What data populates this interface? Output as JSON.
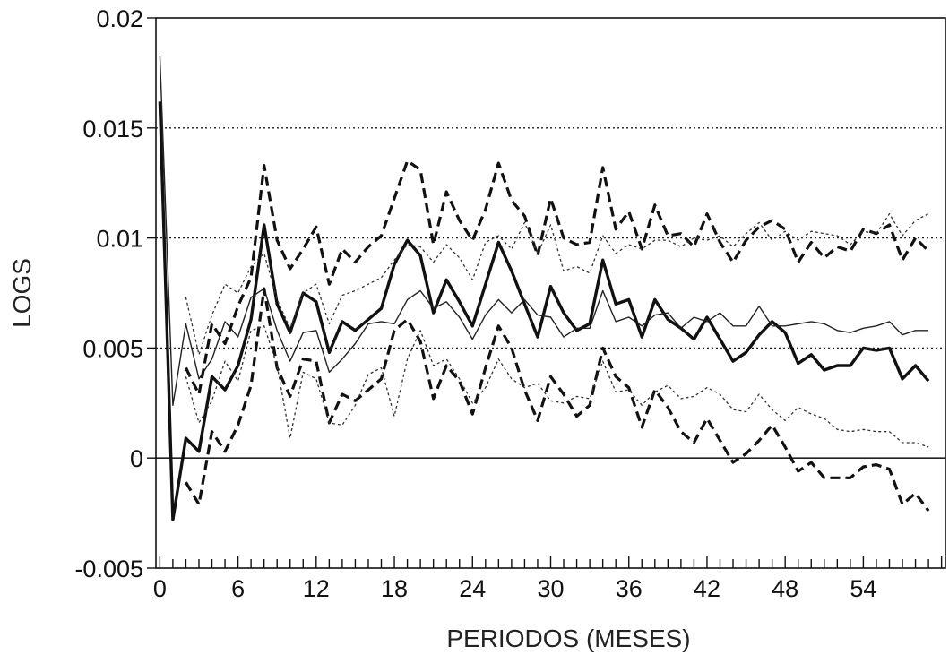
{
  "chart_data": {
    "type": "line",
    "title": "",
    "xlabel": "PERIODOS (MESES)",
    "ylabel": "LOGS",
    "xlim": [
      0,
      60
    ],
    "ylim": [
      -0.005,
      0.02
    ],
    "x_ticks": [
      0,
      6,
      12,
      18,
      24,
      30,
      36,
      42,
      48,
      54
    ],
    "x_tick_labels": [
      "0",
      "6",
      "12",
      "18",
      "24",
      "30",
      "36",
      "42",
      "48",
      "54"
    ],
    "y_ticks": [
      -0.005,
      0,
      0.005,
      0.01,
      0.015,
      0.02
    ],
    "y_tick_labels": [
      "-0.005",
      "0",
      "0.005",
      "0.01",
      "0.015",
      "0.02"
    ],
    "grid": "horizontal dotted",
    "legend": "none",
    "x": [
      0,
      1,
      2,
      3,
      4,
      5,
      6,
      7,
      8,
      9,
      10,
      11,
      12,
      13,
      14,
      15,
      16,
      17,
      18,
      19,
      20,
      21,
      22,
      23,
      24,
      25,
      26,
      27,
      28,
      29,
      30,
      31,
      32,
      33,
      34,
      35,
      36,
      37,
      38,
      39,
      40,
      41,
      42,
      43,
      44,
      45,
      46,
      47,
      48,
      49,
      50,
      51,
      52,
      53,
      54,
      55,
      56,
      57,
      58,
      59
    ],
    "series": [
      {
        "style": "solid-thick",
        "color": "#111111",
        "values": [
          0.0162,
          -0.0028,
          0.0009,
          0.0003,
          0.0037,
          0.0031,
          0.0042,
          0.0063,
          0.0106,
          0.007,
          0.0057,
          0.0075,
          0.0071,
          0.0048,
          0.0062,
          0.0058,
          0.0063,
          0.0068,
          0.0088,
          0.0099,
          0.0092,
          0.0066,
          0.0081,
          0.0071,
          0.006,
          0.0079,
          0.0098,
          0.0085,
          0.007,
          0.0055,
          0.0078,
          0.0066,
          0.0058,
          0.0061,
          0.009,
          0.007,
          0.0072,
          0.0055,
          0.0072,
          0.0063,
          0.0059,
          0.0054,
          0.0064,
          0.0054,
          0.0044,
          0.0048,
          0.0056,
          0.0062,
          0.0057,
          0.0043,
          0.0047,
          0.004,
          0.0042,
          0.0042,
          0.005,
          0.0049,
          0.005,
          0.0036,
          0.0042,
          0.0035
        ]
      },
      {
        "style": "solid-thin",
        "color": "#222222",
        "values": [
          0.0183,
          0.0024,
          0.0061,
          0.0036,
          0.0045,
          0.0062,
          0.0055,
          0.0073,
          0.0077,
          0.0058,
          0.0044,
          0.0057,
          0.0058,
          0.0039,
          0.0045,
          0.0052,
          0.0061,
          0.0062,
          0.0061,
          0.0072,
          0.0076,
          0.0068,
          0.0071,
          0.0064,
          0.0054,
          0.0065,
          0.0072,
          0.0066,
          0.0072,
          0.0065,
          0.0064,
          0.0055,
          0.0059,
          0.0059,
          0.0076,
          0.0062,
          0.0064,
          0.006,
          0.0065,
          0.0066,
          0.0059,
          0.0064,
          0.0062,
          0.0066,
          0.006,
          0.006,
          0.0069,
          0.006,
          0.006,
          0.0061,
          0.0062,
          0.0061,
          0.0058,
          0.0057,
          0.0059,
          0.006,
          0.0062,
          0.0056,
          0.0058,
          0.0058
        ]
      },
      {
        "style": "dashed-thick",
        "color": "#111111",
        "values": [
          null,
          null,
          0.0041,
          0.0029,
          0.0061,
          0.0052,
          0.0069,
          0.0082,
          0.0133,
          0.0099,
          0.0086,
          0.0095,
          0.0105,
          0.0079,
          0.0095,
          0.0089,
          0.0096,
          0.0101,
          0.0118,
          0.0135,
          0.0131,
          0.0097,
          0.0121,
          0.0108,
          0.0099,
          0.0113,
          0.0134,
          0.0117,
          0.011,
          0.0092,
          0.0118,
          0.01,
          0.0097,
          0.0098,
          0.0132,
          0.0104,
          0.0112,
          0.0095,
          0.0115,
          0.0101,
          0.0102,
          0.0096,
          0.0111,
          0.0098,
          0.0089,
          0.0099,
          0.0105,
          0.0108,
          0.0104,
          0.0089,
          0.0098,
          0.0091,
          0.0096,
          0.0094,
          0.0104,
          0.0102,
          0.0106,
          0.009,
          0.01,
          0.0094
        ]
      },
      {
        "style": "dashed-thick",
        "color": "#111111",
        "values": [
          null,
          null,
          -0.0011,
          -0.0021,
          0.0012,
          0.0003,
          0.0015,
          0.0033,
          0.0077,
          0.0041,
          0.0028,
          0.0045,
          0.0044,
          0.0016,
          0.0029,
          0.0026,
          0.0031,
          0.0036,
          0.0058,
          0.0063,
          0.0053,
          0.0027,
          0.0042,
          0.0035,
          0.002,
          0.0041,
          0.006,
          0.005,
          0.0031,
          0.0017,
          0.0037,
          0.0029,
          0.0019,
          0.0024,
          0.005,
          0.0037,
          0.0032,
          0.0014,
          0.0031,
          0.0023,
          0.0012,
          0.0007,
          0.0018,
          0.0008,
          -0.0002,
          0.0002,
          0.0008,
          0.0015,
          0.0005,
          -0.0006,
          -0.0002,
          -0.0009,
          -0.0009,
          -0.0009,
          -0.0004,
          -0.0003,
          -0.0005,
          -0.0021,
          -0.0016,
          -0.0024
        ]
      },
      {
        "style": "dotted-thin",
        "color": "#333333",
        "values": [
          null,
          null,
          0.0073,
          0.0047,
          0.0065,
          0.0079,
          0.0075,
          0.0087,
          0.0093,
          0.0072,
          0.0059,
          0.0075,
          0.0079,
          0.0061,
          0.0074,
          0.0076,
          0.0079,
          0.0082,
          0.009,
          0.0097,
          0.0096,
          0.0089,
          0.0097,
          0.0091,
          0.0081,
          0.0098,
          0.0101,
          0.0095,
          0.0107,
          0.0093,
          0.0106,
          0.0085,
          0.0087,
          0.0084,
          0.0101,
          0.0093,
          0.0097,
          0.0095,
          0.0099,
          0.0099,
          0.0096,
          0.01,
          0.0099,
          0.0101,
          0.0096,
          0.0102,
          0.0107,
          0.0099,
          0.0103,
          0.0099,
          0.0103,
          0.0102,
          0.0101,
          0.0097,
          0.0103,
          0.0102,
          0.0111,
          0.0101,
          0.0108,
          0.0111
        ]
      },
      {
        "style": "dotted-thin",
        "color": "#333333",
        "values": [
          null,
          null,
          0.0037,
          0.0016,
          0.0026,
          0.0044,
          0.0035,
          0.0058,
          0.006,
          0.0042,
          0.0009,
          0.0039,
          0.0036,
          0.0016,
          0.0015,
          0.0024,
          0.0038,
          0.0041,
          0.0019,
          0.0045,
          0.0058,
          0.0042,
          0.0045,
          0.0036,
          0.0025,
          0.0032,
          0.0045,
          0.0036,
          0.0032,
          0.0034,
          0.0026,
          0.0025,
          0.0028,
          0.0027,
          0.0044,
          0.003,
          0.0031,
          0.0024,
          0.003,
          0.0033,
          0.0027,
          0.0028,
          0.0032,
          0.0029,
          0.0022,
          0.0021,
          0.0029,
          0.0022,
          0.0017,
          0.0023,
          0.002,
          0.0018,
          0.0013,
          0.0012,
          0.0013,
          0.0012,
          0.0012,
          0.0007,
          0.0007,
          0.0005
        ]
      }
    ]
  }
}
